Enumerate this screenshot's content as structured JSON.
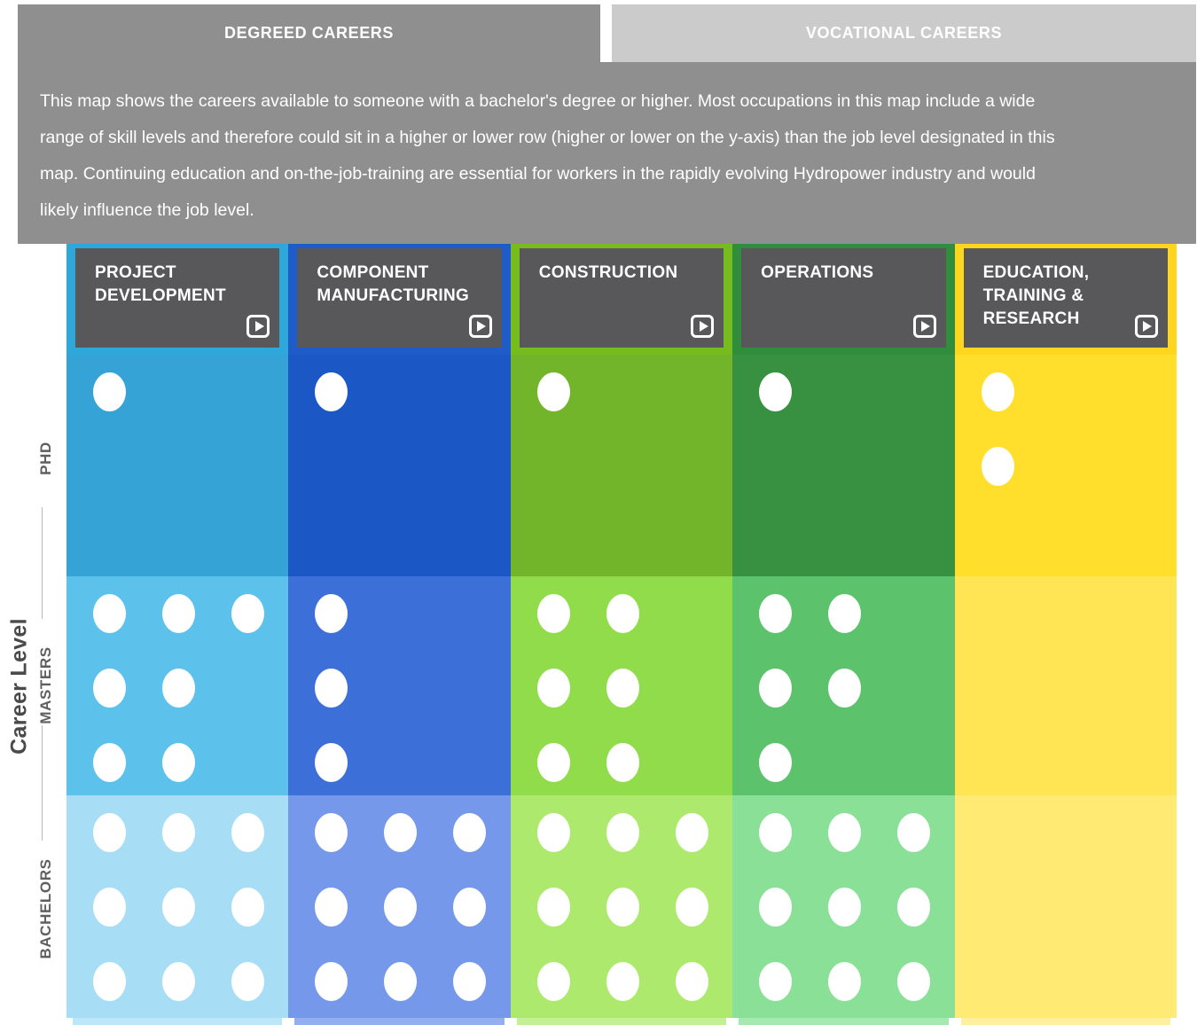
{
  "tabs": {
    "degreed": {
      "label": "DEGREED CAREERS",
      "active": true
    },
    "vocational": {
      "label": "VOCATIONAL CAREERS",
      "active": false
    }
  },
  "description_lines": [
    "This map shows the careers available to someone with a bachelor's degree or higher. Most occupations in this map include a wide",
    "range of skill levels and therefore could sit in a higher or lower row (higher or lower on the y-axis) than the job level designated in this",
    "map. Continuing education and on-the-job-training are essential for workers in the rapidly evolving Hydropower industry and would",
    "likely influence the job level."
  ],
  "y_axis": {
    "title": "Career Level",
    "levels": [
      {
        "id": "phd",
        "label": "PHD"
      },
      {
        "id": "masters",
        "label": "MASTERS"
      },
      {
        "id": "bachelors",
        "label": "BACHELORS"
      }
    ]
  },
  "ui_colors": {
    "panel_gray": "#8F8F8F",
    "inactive_tab_gray": "#CBCBCB",
    "header_box_gray": "#58585A",
    "dot_white": "#FFFFFF",
    "axis_text": "#4A4A4A"
  },
  "columns": [
    {
      "id": "project-development",
      "title": "PROJECT DEVELOPMENT",
      "accent": "#2EA7DB",
      "shades": {
        "phd": "#36A3D7",
        "masters": "#5CC1EB",
        "bachelors": "#A7DEF5"
      },
      "strip": "#BCE7F8",
      "dots": {
        "phd": [
          1
        ],
        "masters": [
          3,
          2,
          2
        ],
        "bachelors": [
          3,
          3,
          3
        ]
      }
    },
    {
      "id": "component-manufacturing",
      "title": "COMPONENT MANUFACTURING",
      "accent": "#1F5CC9",
      "shades": {
        "phd": "#1B58C6",
        "masters": "#3C70D8",
        "bachelors": "#7598EA"
      },
      "strip": "#94AFEF",
      "dots": {
        "phd": [
          1
        ],
        "masters": [
          1,
          1,
          1
        ],
        "bachelors": [
          3,
          3,
          3
        ]
      }
    },
    {
      "id": "construction",
      "title": "CONSTRUCTION",
      "accent": "#77BC1F",
      "shades": {
        "phd": "#73B52A",
        "masters": "#90DC4B",
        "bachelors": "#ACE96C"
      },
      "strip": "#C4F095",
      "dots": {
        "phd": [
          1
        ],
        "masters": [
          2,
          2,
          2
        ],
        "bachelors": [
          3,
          3,
          3
        ]
      }
    },
    {
      "id": "operations",
      "title": "OPERATIONS",
      "accent": "#2F8D3C",
      "shades": {
        "phd": "#389140",
        "masters": "#5CC26B",
        "bachelors": "#8BE098"
      },
      "strip": "#A5E8B0",
      "dots": {
        "phd": [
          1
        ],
        "masters": [
          2,
          2,
          1
        ],
        "bachelors": [
          3,
          3,
          3
        ]
      }
    },
    {
      "id": "education-training-research",
      "title": "EDUCATION, TRAINING & RESEARCH",
      "accent": "#FFD51E",
      "shades": {
        "phd": "#FFDF2B",
        "masters": "#FFE553",
        "bachelors": "#FFEA73"
      },
      "strip": "#FFF0A0",
      "dots": {
        "phd": [
          1,
          1
        ],
        "masters": [],
        "bachelors": []
      }
    }
  ],
  "chart_data": {
    "type": "heatmap",
    "x_categories": [
      "PROJECT DEVELOPMENT",
      "COMPONENT MANUFACTURING",
      "CONSTRUCTION",
      "OPERATIONS",
      "EDUCATION, TRAINING & RESEARCH"
    ],
    "y_categories": [
      "PHD",
      "MASTERS",
      "BACHELORS"
    ],
    "values": [
      [
        1,
        1,
        1,
        1,
        2
      ],
      [
        7,
        3,
        6,
        5,
        0
      ],
      [
        9,
        9,
        9,
        9,
        0
      ]
    ],
    "values_meaning": "count of white career dots per cell",
    "dot_rows_per_cell": {
      "PHD": [
        [
          1
        ],
        [
          1
        ],
        [
          1
        ],
        [
          1
        ],
        [
          1,
          1
        ]
      ],
      "MASTERS": [
        [
          3,
          2,
          2
        ],
        [
          1,
          1,
          1
        ],
        [
          2,
          2,
          2
        ],
        [
          2,
          2,
          1
        ],
        []
      ],
      "BACHELORS": [
        [
          3,
          3,
          3
        ],
        [
          3,
          3,
          3
        ],
        [
          3,
          3,
          3
        ],
        [
          3,
          3,
          3
        ],
        []
      ]
    },
    "xlabel": "",
    "ylabel": "Career Level",
    "legend": "none",
    "grid": "off"
  }
}
